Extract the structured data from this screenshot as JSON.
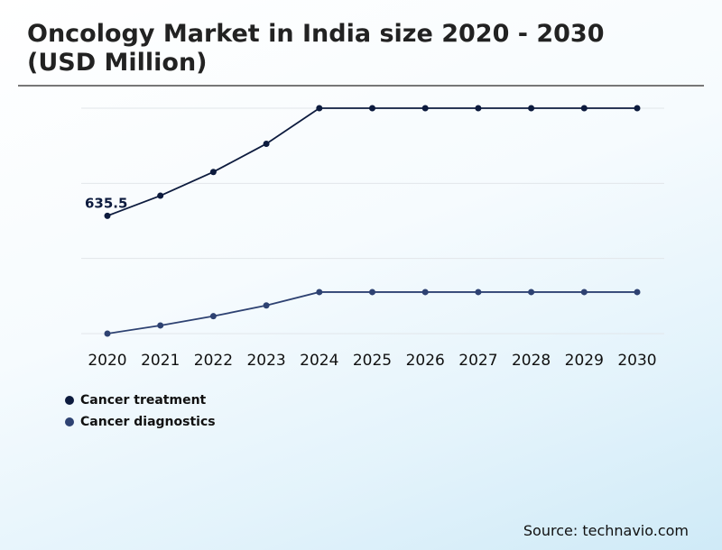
{
  "chart_data": {
    "type": "line",
    "title": "Oncology Market in India size 2020 - 2030 (USD Million)",
    "categories": [
      "2020",
      "2021",
      "2022",
      "2023",
      "2024",
      "2025",
      "2026",
      "2027",
      "2028",
      "2029",
      "2030"
    ],
    "series": [
      {
        "name": "Cancer treatment",
        "color": "#0d1b3e",
        "values": [
          635.5,
          744,
          872,
          1024,
          1216,
          1216,
          1216,
          1216,
          1216,
          1216,
          1216
        ]
      },
      {
        "name": "Cancer diagnostics",
        "color": "#2e4272",
        "values": [
          0,
          44,
          94,
          152,
          224,
          224,
          224,
          224,
          224,
          224,
          224
        ]
      }
    ],
    "data_labels": [
      {
        "series": 0,
        "index": 0,
        "text": "635.5"
      }
    ],
    "ylim": [
      0,
      1216
    ],
    "grid": true,
    "legend": "bottom-left",
    "xlabel": "",
    "ylabel": ""
  },
  "source": "Source: technavio.com"
}
